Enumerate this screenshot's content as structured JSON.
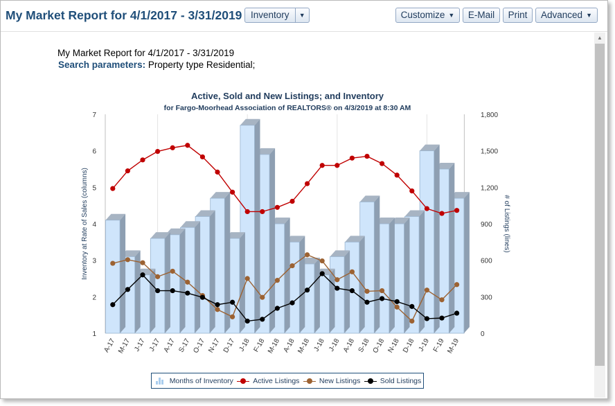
{
  "header": {
    "title": "My Market Report for 4/1/2017 - 3/31/2019",
    "view_select": "Inventory",
    "customize_label": "Customize",
    "email_label": "E-Mail",
    "print_label": "Print",
    "advanced_label": "Advanced"
  },
  "report": {
    "line1": "My Market Report for 4/1/2017 - 3/31/2019",
    "params_label": "Search parameters:",
    "params_value": "Property type Residential;"
  },
  "colors": {
    "brand": "#1f4e79",
    "bars": "#cfe5fb",
    "active": "#c00000",
    "new": "#9c6232",
    "sold": "#000000"
  },
  "chart_data": {
    "type": "bar",
    "title": "Active, Sold and New Listings; and Inventory",
    "subtitle": "for Fargo-Moorhead Association of REALTORS® on 4/3/2019 at 8:30 AM",
    "ylabel_left": "Inventory at Rate of Sales (columns)",
    "ylabel_right": "# of Listings (lines)",
    "ylim_left": [
      1,
      7
    ],
    "ylim_right": [
      0,
      1800
    ],
    "yticks_left": [
      "7",
      "6",
      "5",
      "4",
      "3",
      "2",
      "1"
    ],
    "yticks_right": [
      "1,800",
      "1,500",
      "1,200",
      "900",
      "600",
      "300",
      "0"
    ],
    "categories": [
      "A-17",
      "M-17",
      "J-17",
      "J-17",
      "A-17",
      "S-17",
      "O-17",
      "N-17",
      "D-17",
      "J-18",
      "F-18",
      "M-18",
      "A-18",
      "M-18",
      "J-18",
      "J-18",
      "A-18",
      "S-18",
      "O-18",
      "N-18",
      "D-18",
      "J-19",
      "F-19",
      "M-19"
    ],
    "series": [
      {
        "name": "Months of Inventory",
        "kind": "columns",
        "axis": "left",
        "values": [
          4.1,
          3.1,
          2.6,
          3.6,
          3.7,
          3.9,
          4.2,
          4.7,
          3.6,
          6.7,
          5.9,
          4.0,
          3.5,
          2.9,
          2.6,
          3.1,
          3.5,
          4.6,
          4.0,
          4.0,
          4.2,
          6.0,
          5.5,
          4.7
        ]
      },
      {
        "name": "Active Listings",
        "kind": "line",
        "axis": "right",
        "values": [
          1190,
          1335,
          1425,
          1495,
          1525,
          1545,
          1450,
          1325,
          1160,
          1000,
          1000,
          1035,
          1085,
          1230,
          1380,
          1380,
          1440,
          1455,
          1395,
          1300,
          1170,
          1025,
          985,
          1010
        ]
      },
      {
        "name": "New Listings",
        "kind": "line",
        "axis": "right",
        "values": [
          575,
          605,
          580,
          465,
          510,
          420,
          310,
          195,
          135,
          450,
          295,
          435,
          555,
          645,
          595,
          440,
          505,
          345,
          350,
          215,
          100,
          355,
          275,
          400
        ]
      },
      {
        "name": "Sold Listings",
        "kind": "line",
        "axis": "right",
        "values": [
          235,
          360,
          480,
          350,
          350,
          330,
          295,
          235,
          255,
          100,
          115,
          205,
          250,
          355,
          490,
          370,
          350,
          255,
          285,
          260,
          220,
          120,
          125,
          165
        ]
      }
    ],
    "legend": [
      "Months of Inventory",
      "Active Listings",
      "New Listings",
      "Sold Listings"
    ],
    "legend_position": "bottom",
    "grid": true
  }
}
